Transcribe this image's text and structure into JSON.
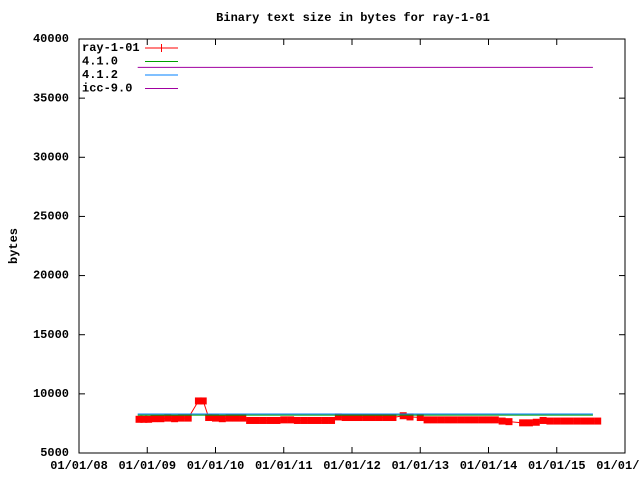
{
  "chart_data": {
    "type": "line",
    "title": "Binary text size in bytes for ray-1-01",
    "y_label": "bytes",
    "xlim": [
      2008,
      2016
    ],
    "xticks": [
      {
        "value": 2008,
        "label": "01/01/08"
      },
      {
        "value": 2009,
        "label": "01/01/09"
      },
      {
        "value": 2010,
        "label": "01/01/10"
      },
      {
        "value": 2011,
        "label": "01/01/11"
      },
      {
        "value": 2012,
        "label": "01/01/12"
      },
      {
        "value": 2013,
        "label": "01/01/13"
      },
      {
        "value": 2014,
        "label": "01/01/14"
      },
      {
        "value": 2015,
        "label": "01/01/15"
      },
      {
        "value": 2016,
        "label": "01/01/16"
      }
    ],
    "ylim": [
      5000,
      40000
    ],
    "yticks": [
      5000,
      10000,
      15000,
      20000,
      25000,
      30000,
      35000,
      40000
    ],
    "legend": "top-left",
    "series": [
      {
        "name": "ray-1-01",
        "color": "#ff0000",
        "markers": true,
        "x": [
          2008.88,
          2008.95,
          2009.02,
          2009.1,
          2009.2,
          2009.3,
          2009.4,
          2009.5,
          2009.6,
          2009.75,
          2009.82,
          2009.9,
          2010.0,
          2010.1,
          2010.2,
          2010.3,
          2010.4,
          2010.5,
          2010.6,
          2010.7,
          2010.8,
          2010.9,
          2011.0,
          2011.1,
          2011.2,
          2011.3,
          2011.4,
          2011.5,
          2011.6,
          2011.7,
          2011.8,
          2011.9,
          2012.0,
          2012.1,
          2012.2,
          2012.3,
          2012.4,
          2012.5,
          2012.6,
          2012.75,
          2012.85,
          2013.0,
          2013.1,
          2013.2,
          2013.3,
          2013.4,
          2013.5,
          2013.6,
          2013.7,
          2013.8,
          2013.9,
          2014.0,
          2014.1,
          2014.2,
          2014.3,
          2014.5,
          2014.6,
          2014.7,
          2014.8,
          2014.9,
          2015.0,
          2015.1,
          2015.2,
          2015.3,
          2015.4,
          2015.5,
          2015.6
        ],
        "values": [
          7850,
          7850,
          7850,
          7900,
          7900,
          7950,
          7900,
          7950,
          7950,
          9400,
          9400,
          8000,
          7950,
          7900,
          7950,
          7950,
          7950,
          7750,
          7750,
          7750,
          7750,
          7750,
          7800,
          7800,
          7750,
          7750,
          7750,
          7750,
          7750,
          7750,
          8050,
          8000,
          8000,
          8000,
          8000,
          8000,
          8000,
          8000,
          8000,
          8150,
          8050,
          8000,
          7800,
          7800,
          7800,
          7800,
          7800,
          7800,
          7800,
          7800,
          7800,
          7800,
          7800,
          7700,
          7650,
          7550,
          7550,
          7600,
          7750,
          7700,
          7700,
          7700,
          7700,
          7700,
          7700,
          7700,
          7700
        ]
      },
      {
        "name": "4.1.0",
        "color": "#00a000",
        "x": [
          2008.86,
          2015.53
        ],
        "values": [
          8200,
          8200
        ]
      },
      {
        "name": "4.1.2",
        "color": "#0080ff",
        "x": [
          2008.86,
          2015.53
        ],
        "values": [
          8300,
          8300
        ]
      },
      {
        "name": "icc-9.0",
        "color": "#a000a0",
        "x": [
          2008.86,
          2015.53
        ],
        "values": [
          37600,
          37600
        ]
      }
    ]
  }
}
